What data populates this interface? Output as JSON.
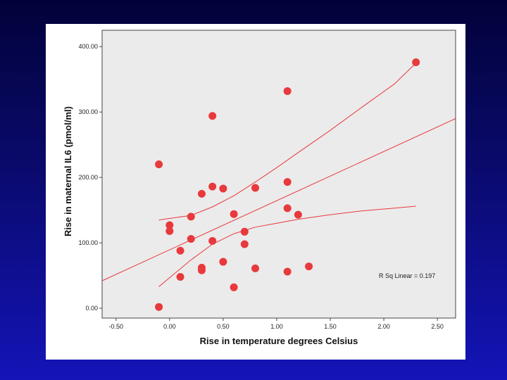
{
  "chart_data": {
    "type": "scatter",
    "title": "",
    "xlabel": "Rise in temperature degrees Celsius",
    "ylabel": "Rise in maternal IL6 (pmol/ml)",
    "xlim": [
      -0.63,
      2.67
    ],
    "ylim": [
      -15,
      425
    ],
    "xticks": [
      -0.5,
      0.0,
      0.5,
      1.0,
      1.5,
      2.0,
      2.5
    ],
    "xtick_labels": [
      "-0.50",
      "0.00",
      "0.50",
      "1.00",
      "1.50",
      "2.00",
      "2.50"
    ],
    "yticks": [
      0,
      100,
      200,
      300,
      400
    ],
    "ytick_labels": [
      "0.00",
      "100.00",
      "200.00",
      "300.00",
      "400.00"
    ],
    "grid": false,
    "points": [
      {
        "x": -0.1,
        "y": 2
      },
      {
        "x": -0.1,
        "y": 220
      },
      {
        "x": 0.0,
        "y": 127
      },
      {
        "x": 0.0,
        "y": 118
      },
      {
        "x": 0.1,
        "y": 88
      },
      {
        "x": 0.1,
        "y": 48
      },
      {
        "x": 0.2,
        "y": 140
      },
      {
        "x": 0.2,
        "y": 106
      },
      {
        "x": 0.3,
        "y": 175
      },
      {
        "x": 0.3,
        "y": 62
      },
      {
        "x": 0.3,
        "y": 58
      },
      {
        "x": 0.4,
        "y": 294
      },
      {
        "x": 0.4,
        "y": 186
      },
      {
        "x": 0.4,
        "y": 103
      },
      {
        "x": 0.5,
        "y": 183
      },
      {
        "x": 0.5,
        "y": 71
      },
      {
        "x": 0.6,
        "y": 144
      },
      {
        "x": 0.6,
        "y": 32
      },
      {
        "x": 0.7,
        "y": 117
      },
      {
        "x": 0.7,
        "y": 98
      },
      {
        "x": 0.8,
        "y": 184
      },
      {
        "x": 0.8,
        "y": 61
      },
      {
        "x": 1.1,
        "y": 332
      },
      {
        "x": 1.1,
        "y": 193
      },
      {
        "x": 1.1,
        "y": 153
      },
      {
        "x": 1.1,
        "y": 56
      },
      {
        "x": 1.2,
        "y": 143
      },
      {
        "x": 1.3,
        "y": 64
      },
      {
        "x": 2.3,
        "y": 376
      }
    ],
    "fit_line": {
      "x": [
        -0.63,
        2.67
      ],
      "y": [
        42,
        290
      ]
    },
    "upper_ci": {
      "x": [
        -0.1,
        0.2,
        0.4,
        0.6,
        0.8,
        1.0,
        1.2,
        1.5,
        1.8,
        2.1,
        2.3
      ],
      "y": [
        135,
        142,
        155,
        172,
        193,
        215,
        238,
        272,
        308,
        343,
        375
      ]
    },
    "lower_ci": {
      "x": [
        -0.1,
        0.2,
        0.4,
        0.6,
        0.8,
        1.0,
        1.2,
        1.5,
        1.8,
        2.1,
        2.3
      ],
      "y": [
        33,
        74,
        98,
        114,
        124,
        130,
        136,
        143,
        149,
        153,
        156
      ]
    },
    "annotation": "R Sq Linear = 0.197",
    "colors": {
      "plot_background": "#ebebeb",
      "point": "#e8393d",
      "line": "#e8393d",
      "axis": "#444444"
    }
  }
}
